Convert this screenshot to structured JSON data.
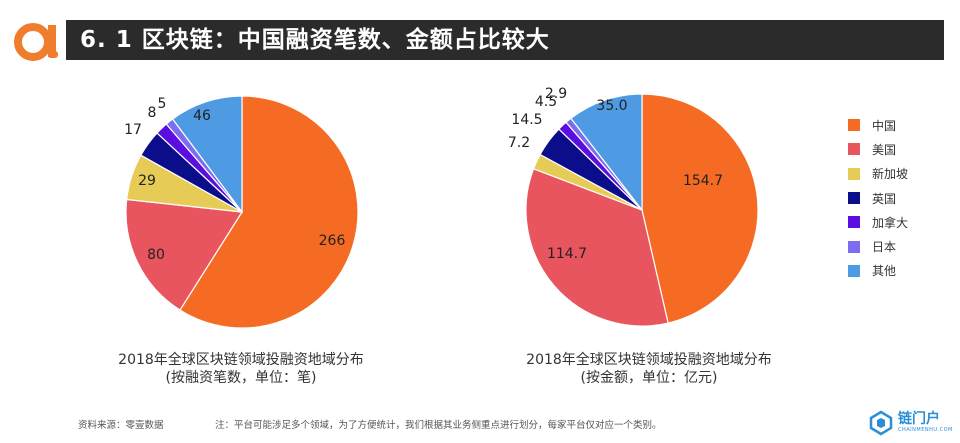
{
  "header": {
    "title": "6. 1 区块链：中国融资笔数、金额占比较大",
    "accent_color": "#f07c2e",
    "bar_color": "#2b2b2b"
  },
  "chart_data": [
    {
      "type": "pie",
      "title": "2018年全球区块链领域投融资地域分布",
      "subtitle": "(按融资笔数，单位：笔)",
      "categories": [
        "中国",
        "美国",
        "新加坡",
        "英国",
        "加拿大",
        "日本",
        "其他"
      ],
      "values": [
        266,
        80,
        29,
        17,
        8,
        5,
        46
      ],
      "labels": [
        "266",
        "80",
        "29",
        "17",
        "8",
        "5",
        "46"
      ],
      "colors": [
        "#f56b24",
        "#e8555e",
        "#e6cc57",
        "#0b0d8a",
        "#5a0fe0",
        "#7b6cf0",
        "#4f9be3"
      ]
    },
    {
      "type": "pie",
      "title": "2018年全球区块链领域投融资地域分布",
      "subtitle": "(按金额，单位：亿元)",
      "categories": [
        "中国",
        "美国",
        "新加坡",
        "英国",
        "加拿大",
        "日本",
        "其他"
      ],
      "values": [
        154.7,
        114.7,
        7.2,
        14.5,
        4.5,
        2.9,
        35.0
      ],
      "labels": [
        "154.7",
        "114.7",
        "7.2",
        "14.5",
        "4.5",
        "2.9",
        "35.0"
      ],
      "colors": [
        "#f56b24",
        "#e8555e",
        "#e6cc57",
        "#0b0d8a",
        "#5a0fe0",
        "#7b6cf0",
        "#4f9be3"
      ]
    }
  ],
  "legend": {
    "items": [
      {
        "label": "中国",
        "color": "#f56b24"
      },
      {
        "label": "美国",
        "color": "#e8555e"
      },
      {
        "label": "新加坡",
        "color": "#e6cc57"
      },
      {
        "label": "英国",
        "color": "#0b0d8a"
      },
      {
        "label": "加拿大",
        "color": "#5a0fe0"
      },
      {
        "label": "日本",
        "color": "#7b6cf0"
      },
      {
        "label": "其他",
        "color": "#4f9be3"
      }
    ]
  },
  "footer": {
    "source": "资料来源：零壹数据",
    "note": "注：平台可能涉足多个领域，为了方便统计，我们根据其业务侧重点进行划分，每家平台仅对应一个类别。"
  },
  "brand": {
    "name": "链门户",
    "subtitle": "CHAINMENHU.COM",
    "color": "#2a8fd6"
  }
}
